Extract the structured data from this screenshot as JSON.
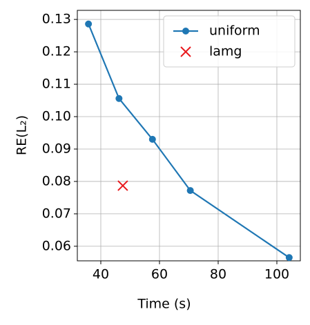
{
  "chart_data": {
    "type": "line",
    "xlabel": "Time (s)",
    "ylabel": "RE(L₂)",
    "series": [
      {
        "name": "uniform",
        "type": "line",
        "marker": "o",
        "color": "#1f77b4",
        "x": [
          35.8,
          46.2,
          57.6,
          70.5,
          104.2
        ],
        "values": [
          0.1286,
          0.1056,
          0.093,
          0.0772,
          0.0565
        ]
      },
      {
        "name": "lamg",
        "type": "scatter",
        "marker": "x",
        "color": "#e8191d",
        "x": [
          47.5
        ],
        "values": [
          0.0787
        ]
      }
    ],
    "xlim": [
      32,
      108
    ],
    "xticks": [
      40,
      60,
      80,
      100
    ],
    "ylim": [
      0.0555,
      0.1328
    ],
    "yticks": [
      {
        "value": 0.06,
        "label": "0.06"
      },
      {
        "value": 0.07,
        "label": "0.07"
      },
      {
        "value": 0.08,
        "label": "0.08"
      },
      {
        "value": 0.09,
        "label": "0.09"
      },
      {
        "value": 0.1,
        "label": "0.10"
      },
      {
        "value": 0.11,
        "label": "0.11"
      },
      {
        "value": 0.12,
        "label": "0.12"
      },
      {
        "value": 0.13,
        "label": "0.13"
      }
    ],
    "grid": true,
    "legend": "upper right"
  }
}
